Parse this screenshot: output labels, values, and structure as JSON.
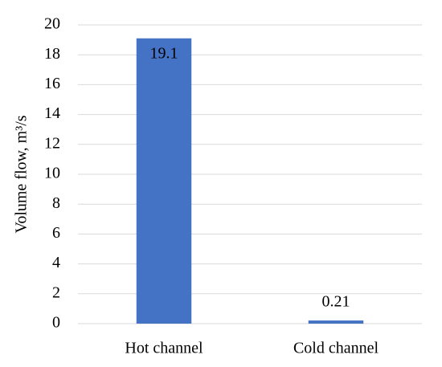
{
  "chart_data": {
    "type": "bar",
    "y_label": "Volume flow, m³/s",
    "categories": [
      "Hot channel",
      "Cold channel"
    ],
    "values": [
      19.1,
      0.21
    ],
    "color": "#4472c4",
    "ylim": [
      0,
      20
    ],
    "yticks": [
      0,
      2,
      4,
      6,
      8,
      10,
      12,
      14,
      16,
      18,
      20
    ],
    "grid": true
  }
}
